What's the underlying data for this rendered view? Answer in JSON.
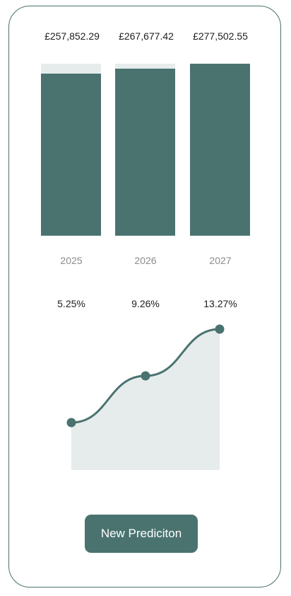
{
  "colors": {
    "accent": "#4a7370",
    "track": "#e6ecec",
    "area": "#e6ecec",
    "border": "#4a7370"
  },
  "chart_data": [
    {
      "type": "bar",
      "categories": [
        "2025",
        "2026",
        "2027"
      ],
      "values": [
        257852.29,
        267677.42,
        277502.55
      ],
      "labels": [
        "£257,852.29",
        "£267,677.42",
        "£277,502.55"
      ],
      "max_value": 277502.55
    },
    {
      "type": "area",
      "x": [
        "2025",
        "2026",
        "2027"
      ],
      "values": [
        5.25,
        9.26,
        13.27
      ],
      "labels": [
        "5.25%",
        "9.26%",
        "13.27%"
      ]
    }
  ],
  "actions": {
    "new_prediction_label": "New Prediciton"
  }
}
